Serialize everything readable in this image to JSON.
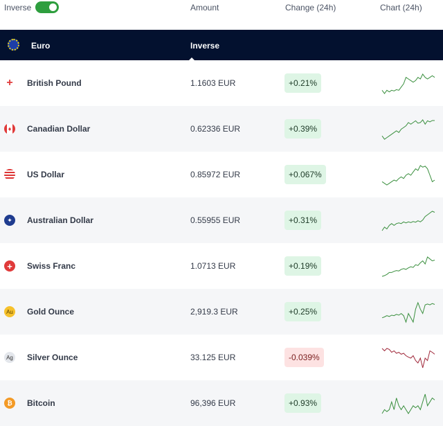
{
  "top": {
    "inverse_label": "Inverse",
    "inverse_on": true,
    "amount": "Amount",
    "change": "Change (24h)",
    "chart": "Chart (24h)"
  },
  "base": {
    "name": "Euro",
    "column": "Inverse"
  },
  "colors": {
    "up": "#3a8f3e",
    "down": "#a0283a",
    "dark": "#03112f"
  },
  "rows": [
    {
      "name": "British Pound",
      "flag": "uk-flag",
      "amount": "1.1603 EUR",
      "change": "+0.21%",
      "dir": "up",
      "spark": [
        3,
        2,
        3,
        2.5,
        3,
        2.8,
        3.2,
        3,
        4,
        5,
        7,
        6.5,
        6,
        5.5,
        6,
        7,
        6.5,
        8,
        7,
        6.5,
        7,
        7.5,
        7
      ]
    },
    {
      "name": "Canadian Dollar",
      "flag": "ca-flag",
      "amount": "0.62336 EUR",
      "change": "+0.39%",
      "dir": "up",
      "spark": [
        3,
        2,
        2.5,
        3,
        3.5,
        4,
        4.5,
        4,
        5,
        5.5,
        6,
        7,
        6.5,
        7,
        7.5,
        6.8,
        7,
        7.8,
        6.5,
        7.5,
        7.2,
        7.6,
        7.6
      ]
    },
    {
      "name": "US Dollar",
      "flag": "us-flag",
      "amount": "0.85972 EUR",
      "change": "+0.067%",
      "dir": "up",
      "spark": [
        3,
        2.5,
        2,
        2.5,
        3,
        3.5,
        3.2,
        4,
        4.5,
        4,
        5,
        5.5,
        5,
        6,
        7,
        6.5,
        8,
        7.5,
        7.8,
        7,
        5,
        3,
        3.5
      ]
    },
    {
      "name": "Australian Dollar",
      "flag": "au-flag",
      "amount": "0.55955 EUR",
      "change": "+0.31%",
      "dir": "up",
      "spark": [
        2,
        3,
        2.5,
        3.5,
        4,
        3.5,
        4,
        4.2,
        4,
        4.5,
        4.2,
        4.5,
        4.3,
        4.6,
        4.4,
        4.8,
        4.5,
        5,
        6,
        6.5,
        7,
        7.5,
        7.2
      ]
    },
    {
      "name": "Swiss Franc",
      "flag": "ch-flag",
      "amount": "1.0713 EUR",
      "change": "+0.19%",
      "dir": "up",
      "spark": [
        2,
        2.2,
        2.5,
        3,
        3,
        3.3,
        3.5,
        3.4,
        3.8,
        4,
        3.8,
        4.2,
        4.5,
        4.3,
        5,
        4.8,
        5.5,
        6,
        5.2,
        7,
        6.5,
        6,
        6.2
      ]
    },
    {
      "name": "Gold Ounce",
      "flag": "gold-icon",
      "amount": "2,919.3 EUR",
      "change": "+0.25%",
      "dir": "up",
      "spark": [
        4,
        4.2,
        4.5,
        4.3,
        4.6,
        4.5,
        4.8,
        4.6,
        5,
        4.5,
        3,
        5,
        4,
        3,
        6,
        7.5,
        6,
        5,
        7,
        7.2,
        7,
        7.3,
        7.1
      ]
    },
    {
      "name": "Silver Ounce",
      "flag": "silver-icon",
      "amount": "33.125 EUR",
      "change": "-0.039%",
      "dir": "down",
      "spark": [
        7,
        6.5,
        7,
        6.8,
        6.2,
        6.5,
        6,
        6.2,
        5.8,
        6,
        5.5,
        5.2,
        5,
        5.5,
        4.5,
        4,
        5,
        3,
        5,
        4.5,
        6.5,
        6.2,
        5.8
      ]
    },
    {
      "name": "Bitcoin",
      "flag": "btc-icon",
      "amount": "96,396 EUR",
      "change": "+0.93%",
      "dir": "up",
      "spark": [
        2,
        3,
        2.5,
        3,
        5,
        3,
        6,
        4,
        3,
        4,
        3,
        2,
        3,
        4,
        3.5,
        4,
        3,
        5,
        7,
        4,
        5,
        6,
        5.5
      ]
    }
  ]
}
